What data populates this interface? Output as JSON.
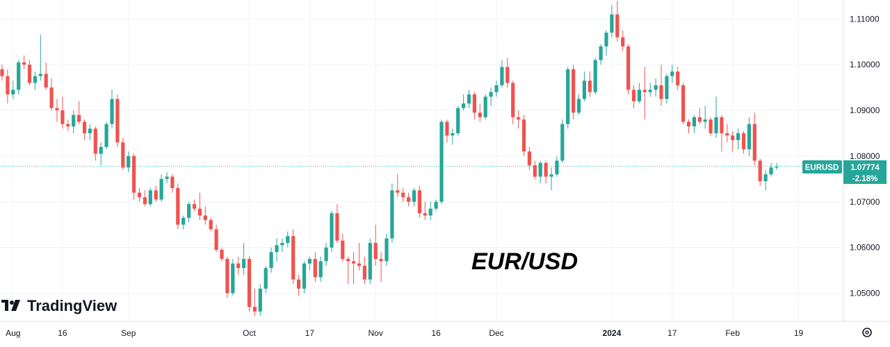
{
  "chart_data": {
    "type": "candlestick",
    "title": "EUR/USD",
    "symbol": "EURUSD",
    "last_price": "1.07774",
    "change_pct": "-2.18%",
    "brand": "TradingView",
    "ylim": [
      1.0445,
      1.1145
    ],
    "y_ticks": [
      "1.11000",
      "1.10000",
      "1.09000",
      "1.08000",
      "1.07000",
      "1.06000",
      "1.05000"
    ],
    "x_ticks": [
      {
        "label": "Aug",
        "x": 2,
        "major": false
      },
      {
        "label": "16",
        "x": 11,
        "major": false
      },
      {
        "label": "Sep",
        "x": 23,
        "major": false
      },
      {
        "label": "Oct",
        "x": 45,
        "major": false
      },
      {
        "label": "17",
        "x": 56,
        "major": false
      },
      {
        "label": "Nov",
        "x": 68,
        "major": false
      },
      {
        "label": "16",
        "x": 79,
        "major": false
      },
      {
        "label": "Dec",
        "x": 90,
        "major": false
      },
      {
        "label": "2024",
        "x": 111,
        "major": true
      },
      {
        "label": "17",
        "x": 122,
        "major": false
      },
      {
        "label": "Feb",
        "x": 133,
        "major": false
      },
      {
        "label": "19",
        "x": 145,
        "major": false
      }
    ],
    "ohlc": [
      [
        1.099,
        1.1,
        1.0965,
        1.0975
      ],
      [
        1.0975,
        1.099,
        1.0915,
        1.0935
      ],
      [
        1.0935,
        1.0965,
        1.0925,
        1.0945
      ],
      [
        1.0945,
        1.101,
        1.0935,
        1.1005
      ],
      [
        1.1005,
        1.102,
        1.099,
        1.1
      ],
      [
        1.1,
        1.101,
        1.0955,
        1.096
      ],
      [
        1.096,
        1.0985,
        1.0945,
        1.0975
      ],
      [
        1.0975,
        1.1065,
        1.0965,
        1.098
      ],
      [
        1.098,
        1.1005,
        1.0945,
        1.095
      ],
      [
        1.095,
        1.097,
        1.09,
        1.0905
      ],
      [
        1.0905,
        1.0925,
        1.0875,
        1.09
      ],
      [
        1.09,
        1.093,
        1.086,
        1.087
      ],
      [
        1.087,
        1.088,
        1.0855,
        1.0865
      ],
      [
        1.0865,
        1.09,
        1.085,
        1.089
      ],
      [
        1.089,
        1.092,
        1.087,
        1.0875
      ],
      [
        1.0875,
        1.088,
        1.0835,
        1.085
      ],
      [
        1.085,
        1.087,
        1.0835,
        1.086
      ],
      [
        1.086,
        1.0865,
        1.079,
        1.0805
      ],
      [
        1.0805,
        1.083,
        1.078,
        1.082
      ],
      [
        1.082,
        1.0875,
        1.0815,
        1.087
      ],
      [
        1.087,
        1.0945,
        1.086,
        1.0925
      ],
      [
        1.0925,
        1.0935,
        1.082,
        1.083
      ],
      [
        1.083,
        1.084,
        1.077,
        1.0775
      ],
      [
        1.0775,
        1.081,
        1.0765,
        1.08
      ],
      [
        1.08,
        1.0805,
        1.0705,
        1.072
      ],
      [
        1.072,
        1.073,
        1.07,
        1.071
      ],
      [
        1.071,
        1.0725,
        1.069,
        1.0695
      ],
      [
        1.0695,
        1.073,
        1.069,
        1.0725
      ],
      [
        1.0725,
        1.0735,
        1.07,
        1.0705
      ],
      [
        1.0705,
        1.076,
        1.07,
        1.075
      ],
      [
        1.075,
        1.0765,
        1.074,
        1.0755
      ],
      [
        1.0755,
        1.076,
        1.072,
        1.073
      ],
      [
        1.073,
        1.074,
        1.064,
        1.065
      ],
      [
        1.065,
        1.067,
        1.064,
        1.0665
      ],
      [
        1.0665,
        1.07,
        1.0655,
        1.0695
      ],
      [
        1.0695,
        1.0705,
        1.068,
        1.0685
      ],
      [
        1.0685,
        1.072,
        1.066,
        1.067
      ],
      [
        1.067,
        1.069,
        1.065,
        1.066
      ],
      [
        1.066,
        1.0665,
        1.0635,
        1.064
      ],
      [
        1.064,
        1.065,
        1.059,
        1.0595
      ],
      [
        1.0595,
        1.06,
        1.057,
        1.0575
      ],
      [
        1.0575,
        1.058,
        1.049,
        1.05
      ],
      [
        1.05,
        1.0575,
        1.0495,
        1.0565
      ],
      [
        1.0565,
        1.058,
        1.054,
        1.0555
      ],
      [
        1.0555,
        1.061,
        1.054,
        1.0575
      ],
      [
        1.0575,
        1.058,
        1.046,
        1.047
      ],
      [
        1.047,
        1.051,
        1.045,
        1.046
      ],
      [
        1.046,
        1.052,
        1.045,
        1.051
      ],
      [
        1.051,
        1.056,
        1.05,
        1.0555
      ],
      [
        1.0555,
        1.06,
        1.0545,
        1.059
      ],
      [
        1.059,
        1.062,
        1.057,
        1.0605
      ],
      [
        1.0605,
        1.062,
        1.059,
        1.061
      ],
      [
        1.061,
        1.0635,
        1.06,
        1.0625
      ],
      [
        1.0625,
        1.064,
        1.052,
        1.053
      ],
      [
        1.053,
        1.054,
        1.0495,
        1.051
      ],
      [
        1.051,
        1.057,
        1.05,
        1.0565
      ],
      [
        1.0565,
        1.058,
        1.055,
        1.0575
      ],
      [
        1.0575,
        1.059,
        1.0525,
        1.0535
      ],
      [
        1.0535,
        1.058,
        1.0525,
        1.057
      ],
      [
        1.057,
        1.061,
        1.056,
        1.06
      ],
      [
        1.06,
        1.068,
        1.059,
        1.0675
      ],
      [
        1.0675,
        1.0695,
        1.061,
        1.0615
      ],
      [
        1.0615,
        1.063,
        1.057,
        1.0575
      ],
      [
        1.0575,
        1.058,
        1.052,
        1.057
      ],
      [
        1.057,
        1.059,
        1.052,
        1.0565
      ],
      [
        1.0565,
        1.061,
        1.055,
        1.056
      ],
      [
        1.056,
        1.058,
        1.052,
        1.053
      ],
      [
        1.053,
        1.062,
        1.052,
        1.061
      ],
      [
        1.061,
        1.065,
        1.056,
        1.0575
      ],
      [
        1.0575,
        1.059,
        1.0525,
        1.057
      ],
      [
        1.057,
        1.063,
        1.056,
        1.062
      ],
      [
        1.062,
        1.074,
        1.061,
        1.0725
      ],
      [
        1.0725,
        1.076,
        1.071,
        1.072
      ],
      [
        1.072,
        1.073,
        1.07,
        1.071
      ],
      [
        1.071,
        1.072,
        1.069,
        1.07
      ],
      [
        1.07,
        1.073,
        1.069,
        1.0725
      ],
      [
        1.0725,
        1.0735,
        1.0665,
        1.0675
      ],
      [
        1.0675,
        1.07,
        1.066,
        1.067
      ],
      [
        1.067,
        1.07,
        1.066,
        1.0685
      ],
      [
        1.0685,
        1.0705,
        1.068,
        1.07
      ],
      [
        1.07,
        1.088,
        1.0695,
        1.0875
      ],
      [
        1.0875,
        1.088,
        1.083,
        1.0845
      ],
      [
        1.0845,
        1.086,
        1.0825,
        1.085
      ],
      [
        1.085,
        1.091,
        1.0845,
        1.0905
      ],
      [
        1.0905,
        1.0935,
        1.09,
        1.0915
      ],
      [
        1.0915,
        1.0945,
        1.0905,
        1.0935
      ],
      [
        1.0935,
        1.094,
        1.088,
        1.0895
      ],
      [
        1.0895,
        1.0915,
        1.0875,
        1.0885
      ],
      [
        1.0885,
        1.0935,
        1.088,
        1.093
      ],
      [
        1.093,
        1.095,
        1.091,
        1.094
      ],
      [
        1.094,
        1.0965,
        1.093,
        1.0955
      ],
      [
        1.0955,
        1.101,
        1.095,
        1.0995
      ],
      [
        1.0995,
        1.1015,
        1.095,
        1.096
      ],
      [
        1.096,
        1.0965,
        1.087,
        1.0885
      ],
      [
        1.0885,
        1.09,
        1.086,
        1.088
      ],
      [
        1.088,
        1.089,
        1.08,
        1.081
      ],
      [
        1.081,
        1.082,
        1.077,
        1.078
      ],
      [
        1.078,
        1.079,
        1.075,
        1.0755
      ],
      [
        1.0755,
        1.079,
        1.074,
        1.0785
      ],
      [
        1.0785,
        1.079,
        1.074,
        1.0755
      ],
      [
        1.0755,
        1.0775,
        1.0725,
        1.076
      ],
      [
        1.076,
        1.08,
        1.0755,
        1.079
      ],
      [
        1.079,
        1.088,
        1.0785,
        1.087
      ],
      [
        1.087,
        1.0995,
        1.086,
        1.099
      ],
      [
        1.099,
        1.1,
        1.088,
        1.0895
      ],
      [
        1.0895,
        1.0935,
        1.089,
        1.0925
      ],
      [
        1.0925,
        1.0985,
        1.092,
        1.0965
      ],
      [
        1.0965,
        1.0985,
        1.093,
        1.094
      ],
      [
        1.094,
        1.1015,
        1.0935,
        1.101
      ],
      [
        1.101,
        1.1045,
        1.1,
        1.104
      ],
      [
        1.104,
        1.1075,
        1.102,
        1.107
      ],
      [
        1.107,
        1.113,
        1.106,
        1.111
      ],
      [
        1.111,
        1.114,
        1.105,
        1.106
      ],
      [
        1.106,
        1.1075,
        1.103,
        1.104
      ],
      [
        1.104,
        1.1045,
        1.0935,
        1.0945
      ],
      [
        1.0945,
        1.0955,
        1.0905,
        1.092
      ],
      [
        1.092,
        1.096,
        1.0915,
        1.0945
      ],
      [
        1.0945,
        1.0995,
        1.088,
        1.094
      ],
      [
        1.094,
        1.096,
        1.093,
        1.0945
      ],
      [
        1.0945,
        1.097,
        1.093,
        1.0955
      ],
      [
        1.0955,
        1.1,
        1.091,
        1.0925
      ],
      [
        1.0925,
        1.098,
        1.0915,
        1.0975
      ],
      [
        1.0975,
        1.1,
        1.096,
        1.0985
      ],
      [
        1.0985,
        1.0995,
        1.0945,
        1.0955
      ],
      [
        1.0955,
        1.096,
        1.087,
        1.0875
      ],
      [
        1.0875,
        1.088,
        1.085,
        1.0865
      ],
      [
        1.0865,
        1.089,
        1.085,
        1.0885
      ],
      [
        1.0885,
        1.0905,
        1.087,
        1.0875
      ],
      [
        1.0875,
        1.091,
        1.086,
        1.088
      ],
      [
        1.088,
        1.0885,
        1.0845,
        1.085
      ],
      [
        1.085,
        1.093,
        1.084,
        1.0885
      ],
      [
        1.0885,
        1.089,
        1.081,
        1.085
      ],
      [
        1.085,
        1.087,
        1.083,
        1.0845
      ],
      [
        1.0845,
        1.0855,
        1.081,
        1.0835
      ],
      [
        1.0835,
        1.086,
        1.0815,
        1.085
      ],
      [
        1.085,
        1.0855,
        1.0805,
        1.0815
      ],
      [
        1.0815,
        1.0885,
        1.08,
        1.087
      ],
      [
        1.087,
        1.0895,
        1.078,
        1.079
      ],
      [
        1.079,
        1.0795,
        1.0735,
        1.0745
      ],
      [
        1.0745,
        1.077,
        1.0725,
        1.076
      ],
      [
        1.076,
        1.0785,
        1.0755,
        1.0775
      ],
      [
        1.0775,
        1.0785,
        1.077,
        1.0777
      ]
    ]
  },
  "colors": {
    "up": "#26a69a",
    "down": "#ef5350",
    "grid": "#f0f3fa",
    "axis_text": "#131722",
    "tag_bg": "#26a69a",
    "last_line": "#26a69a"
  },
  "toolbar": {
    "settings_icon": "settings-icon"
  }
}
